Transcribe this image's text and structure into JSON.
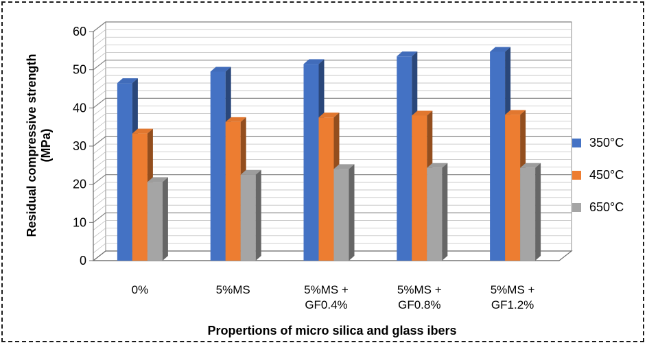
{
  "chart_data": {
    "type": "bar",
    "style": "3d-clustered-column",
    "title": "",
    "xlabel": "Propertions of micro silica and glass ibers",
    "ylabel": "Residual compressive strength (MPa)",
    "ylabel_lines": [
      "Residual compressive strength",
      "(MPa)"
    ],
    "ylim": [
      0,
      60
    ],
    "yticks": [
      "0",
      "10",
      "20",
      "30",
      "40",
      "50",
      "60"
    ],
    "grid": true,
    "legend_position": "right",
    "categories": [
      "0%",
      "5%MS",
      "5%MS + GF0.4%",
      "5%MS + GF0.8%",
      "5%MS + GF1.2%"
    ],
    "category_lines": [
      [
        "0%"
      ],
      [
        "5%MS"
      ],
      [
        "5%MS +",
        "GF0.4%"
      ],
      [
        "5%MS +",
        "GF0.8%"
      ],
      [
        "5%MS +",
        "GF1.2%"
      ]
    ],
    "series": [
      {
        "name": "350°C",
        "color": "#4472C4",
        "values": [
          46.5,
          49.5,
          51.5,
          53.5,
          54.7
        ]
      },
      {
        "name": "450°C",
        "color": "#ED7D31",
        "values": [
          33.3,
          36.3,
          37.5,
          38.0,
          38.2
        ]
      },
      {
        "name": "650°C",
        "color": "#A5A5A5",
        "values": [
          20.6,
          22.5,
          24.0,
          24.3,
          24.3
        ]
      }
    ]
  }
}
